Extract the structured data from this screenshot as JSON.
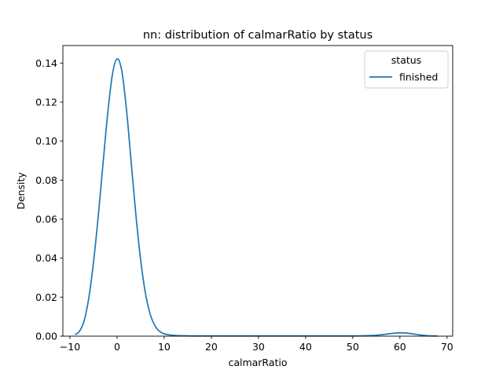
{
  "chart_data": {
    "type": "line",
    "title": "nn: distribution of calmarRatio by status",
    "xlabel": "calmarRatio",
    "ylabel": "Density",
    "xlim": [
      -11.5,
      71.2
    ],
    "ylim": [
      0,
      0.149
    ],
    "xticks": [
      -10,
      0,
      10,
      20,
      30,
      40,
      50,
      60,
      70
    ],
    "yticks": [
      0.0,
      0.02,
      0.04,
      0.06,
      0.08,
      0.1,
      0.12,
      0.14
    ],
    "xtick_labels": [
      "−10",
      "0",
      "10",
      "20",
      "30",
      "40",
      "50",
      "60",
      "70"
    ],
    "ytick_labels": [
      "0.00",
      "0.02",
      "0.04",
      "0.06",
      "0.08",
      "0.10",
      "0.12",
      "0.14"
    ],
    "legend": {
      "title": "status",
      "placement": "top-right"
    },
    "series": [
      {
        "name": "finished",
        "color": "#1f77b4",
        "x": [
          -8.9,
          -8,
          -7,
          -6,
          -5,
          -4,
          -3,
          -2,
          -1,
          0,
          1,
          2,
          3,
          4,
          5,
          6,
          7,
          8,
          9,
          10,
          12,
          14,
          16,
          20,
          30,
          40,
          50,
          54,
          56,
          58,
          60,
          62,
          64,
          66,
          68
        ],
        "y": [
          0.0008,
          0.0024,
          0.0078,
          0.0196,
          0.038,
          0.0614,
          0.088,
          0.114,
          0.134,
          0.1422,
          0.136,
          0.116,
          0.089,
          0.062,
          0.039,
          0.0222,
          0.0115,
          0.0055,
          0.0025,
          0.0012,
          0.0004,
          0.0002,
          0.0001,
          0.0001,
          0.0001,
          0.0001,
          0.0001,
          0.0003,
          0.0007,
          0.0013,
          0.0017,
          0.0014,
          0.0007,
          0.0002,
          0.0001
        ]
      }
    ]
  }
}
